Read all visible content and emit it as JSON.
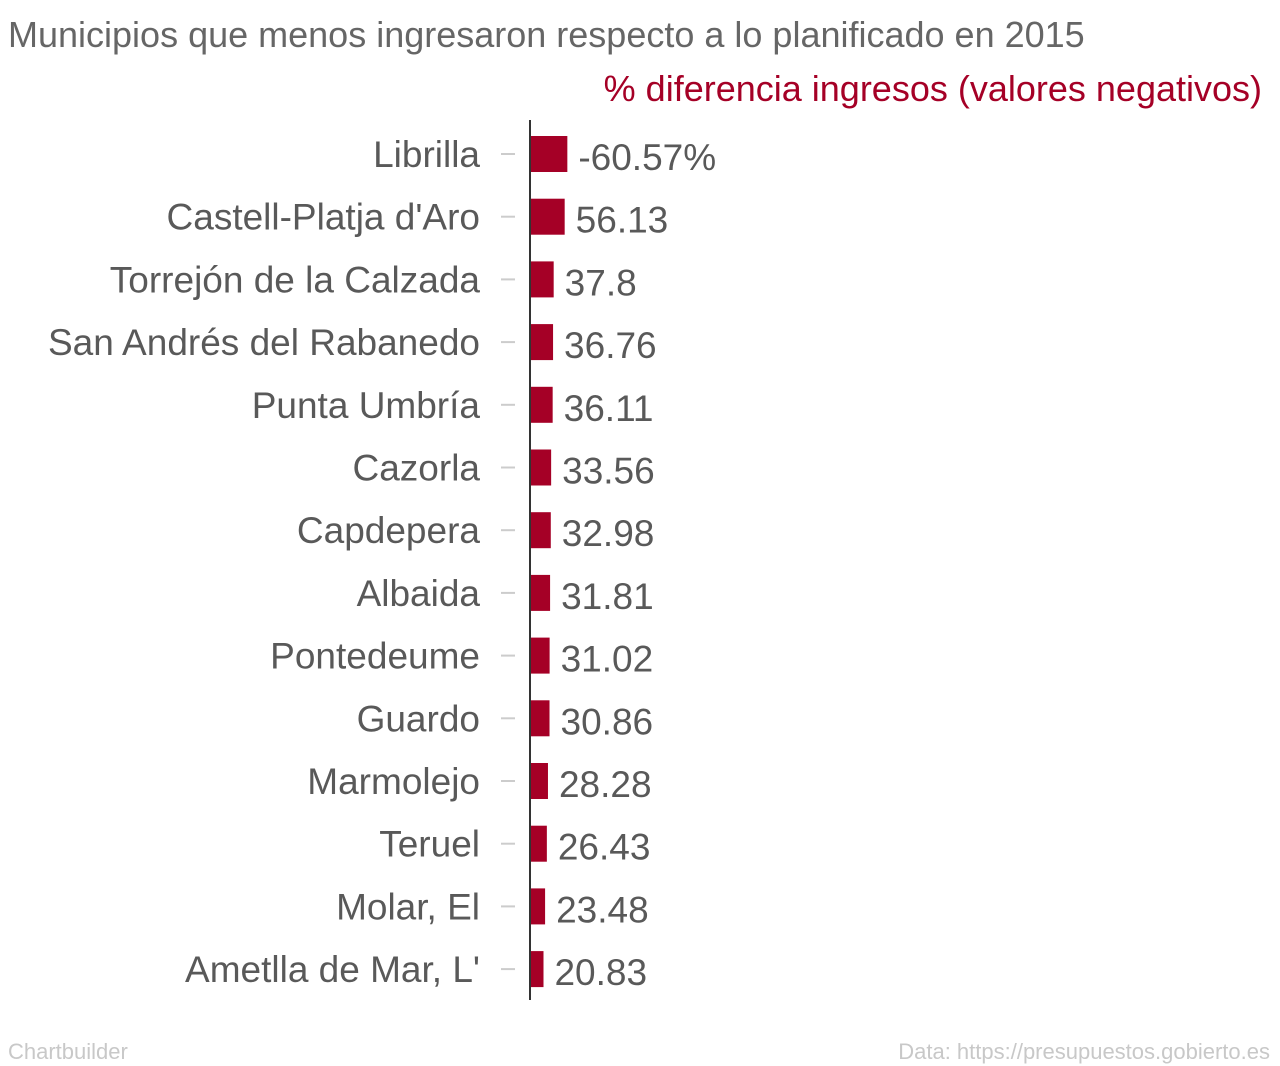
{
  "chart_data": {
    "type": "bar",
    "orientation": "horizontal",
    "title": "Municipios que menos ingresaron respecto a lo planificado en 2015",
    "series": [
      {
        "name": "% diferencia ingresos (valores negativos)",
        "color": "#a50026",
        "values": [
          60.57,
          56.13,
          37.8,
          36.76,
          36.11,
          33.56,
          32.98,
          31.81,
          31.02,
          30.86,
          28.28,
          26.43,
          23.48,
          20.83
        ],
        "value_labels": [
          "-60.57%",
          "56.13",
          "37.8",
          "36.76",
          "36.11",
          "33.56",
          "32.98",
          "31.81",
          "31.02",
          "30.86",
          "28.28",
          "26.43",
          "23.48",
          "20.83"
        ]
      }
    ],
    "categories": [
      "Librilla",
      "Castell-Platja d'Aro",
      "Torrejón de la Calzada",
      "San Andrés del Rabanedo",
      "Punta Umbría",
      "Cazorla",
      "Capdepera",
      "Albaida",
      "Pontedeume",
      "Guardo",
      "Marmolejo",
      "Teruel",
      "Molar, El",
      "Ametlla de Mar, L'"
    ],
    "xlim": [
      0,
      280
    ],
    "grid": false,
    "legend": "top-right"
  },
  "footer": {
    "credit": "Chartbuilder",
    "source": "Data: https://presupuestos.gobierto.es"
  },
  "colors": {
    "bar": "#a50026",
    "subtitle": "#a50026",
    "text": "#595959",
    "axis": "#333333",
    "tick": "#cccccc",
    "footer": "#c8c8c8"
  }
}
